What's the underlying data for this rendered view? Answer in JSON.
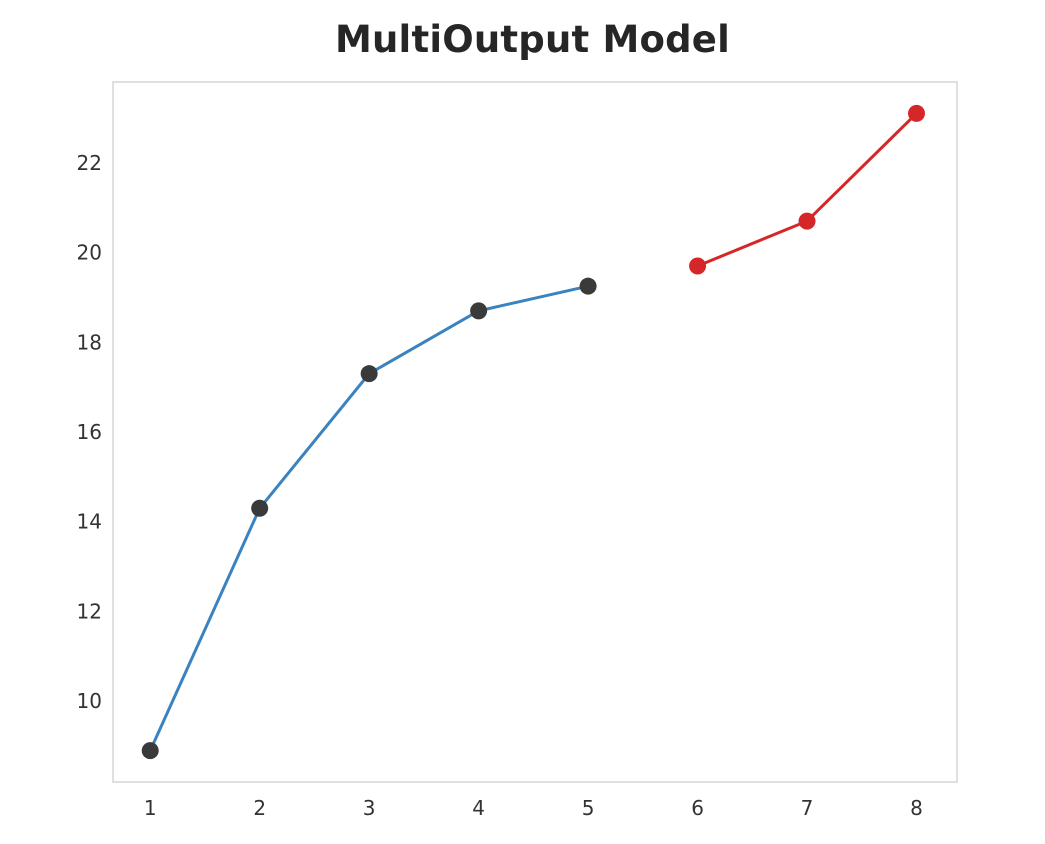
{
  "chart_data": {
    "type": "line",
    "title": "MultiOutput Model",
    "xlabel": "",
    "ylabel": "",
    "x_ticks": [
      "1",
      "2",
      "3",
      "4",
      "5",
      "6",
      "7",
      "8"
    ],
    "y_ticks": [
      "10",
      "12",
      "14",
      "16",
      "18",
      "20",
      "22"
    ],
    "xlim": [
      0.66,
      8.37
    ],
    "ylim": [
      8.2,
      23.8
    ],
    "grid": false,
    "legend": "none",
    "series": [
      {
        "x": [
          1,
          2,
          3,
          4,
          5
        ],
        "y": [
          8.9,
          14.3,
          17.3,
          18.7,
          19.25
        ],
        "line_color": "#3a82c0",
        "marker_color": "#3a3a3a"
      },
      {
        "x": [
          6,
          7,
          8
        ],
        "y": [
          19.7,
          20.7,
          23.1
        ],
        "line_color": "#d62728",
        "marker_color": "#d62728"
      }
    ]
  }
}
